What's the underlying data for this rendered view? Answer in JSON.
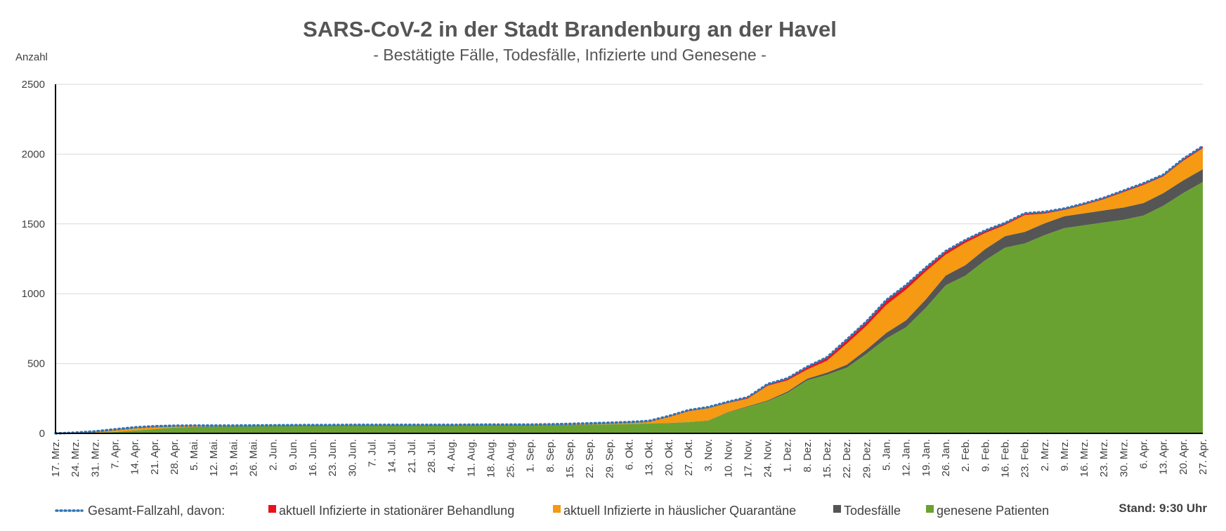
{
  "chart_data": {
    "type": "area",
    "title": "SARS-CoV-2 in der Stadt Brandenburg an der Havel",
    "subtitle": "- Bestätigte Fälle, Todesfälle, Infizierte und Genesene -",
    "ylabel": "Anzahl",
    "ylim": [
      0,
      2500
    ],
    "yticks": [
      0,
      500,
      1000,
      1500,
      2000,
      2500
    ],
    "grid": true,
    "legend_position": "bottom",
    "stand": "Stand: 9:30 Uhr",
    "categories": [
      "17. Mrz.",
      "24. Mrz.",
      "31. Mrz.",
      "7. Apr.",
      "14. Apr.",
      "21. Apr.",
      "28. Apr.",
      "5. Mai.",
      "12. Mai.",
      "19. Mai.",
      "26. Mai.",
      "2. Jun.",
      "9. Jun.",
      "16. Jun.",
      "23. Jun.",
      "30. Jun.",
      "7. Jul.",
      "14. Jul.",
      "21. Jul.",
      "28. Jul.",
      "4. Aug.",
      "11. Aug.",
      "18. Aug.",
      "25. Aug.",
      "1. Sep.",
      "8. Sep.",
      "15. Sep.",
      "22. Sep.",
      "29. Sep.",
      "6. Okt.",
      "13. Okt.",
      "20. Okt.",
      "27. Okt.",
      "3. Nov.",
      "10. Nov.",
      "17. Nov.",
      "24. Nov.",
      "1. Dez.",
      "8. Dez.",
      "15. Dez.",
      "22. Dez.",
      "29. Dez.",
      "5. Jan.",
      "12. Jan.",
      "19. Jan.",
      "26. Jan.",
      "2. Feb.",
      "9. Feb.",
      "16. Feb.",
      "23. Feb.",
      "2. Mrz.",
      "9. Mrz.",
      "16. Mrz.",
      "23. Mrz.",
      "30. Mrz.",
      "6. Apr.",
      "13. Apr.",
      "20. Apr.",
      "27. Apr."
    ],
    "series": [
      {
        "name": "genesene Patienten",
        "color": "#6aa232",
        "values": [
          0,
          2,
          5,
          10,
          20,
          30,
          40,
          45,
          48,
          50,
          52,
          54,
          55,
          56,
          56,
          57,
          57,
          57,
          57,
          57,
          57,
          58,
          58,
          58,
          58,
          59,
          60,
          62,
          64,
          66,
          70,
          74,
          80,
          90,
          150,
          190,
          230,
          290,
          380,
          420,
          470,
          570,
          680,
          760,
          900,
          1060,
          1130,
          1240,
          1330,
          1360,
          1420,
          1470,
          1490,
          1510,
          1530,
          1560,
          1630,
          1720,
          1800
        ]
      },
      {
        "name": "Todesfälle",
        "color": "#555555",
        "values": [
          0,
          0,
          0,
          0,
          1,
          1,
          1,
          1,
          1,
          1,
          1,
          1,
          1,
          1,
          1,
          1,
          1,
          1,
          1,
          1,
          1,
          1,
          1,
          1,
          1,
          1,
          1,
          1,
          1,
          1,
          1,
          1,
          1,
          2,
          3,
          4,
          6,
          9,
          12,
          15,
          22,
          30,
          40,
          50,
          60,
          70,
          75,
          80,
          82,
          83,
          84,
          85,
          86,
          87,
          88,
          89,
          90,
          91,
          92
        ]
      },
      {
        "name": "aktuell Infizierte in häuslicher Quarantäne",
        "color": "#f59a12",
        "values": [
          0,
          3,
          8,
          17,
          19,
          17,
          12,
          8,
          6,
          4,
          3,
          2,
          2,
          2,
          2,
          2,
          2,
          2,
          2,
          2,
          2,
          2,
          3,
          3,
          3,
          4,
          6,
          8,
          10,
          12,
          16,
          45,
          80,
          90,
          65,
          55,
          105,
          80,
          65,
          85,
          150,
          170,
          200,
          220,
          200,
          150,
          160,
          115,
          80,
          120,
          70,
          45,
          60,
          80,
          110,
          130,
          120,
          140,
          150
        ]
      },
      {
        "name": "aktuell Infizierte in stationärer Behandlung",
        "color": "#e8141c",
        "values": [
          0,
          0,
          1,
          2,
          3,
          3,
          2,
          2,
          1,
          1,
          1,
          1,
          1,
          1,
          1,
          1,
          1,
          1,
          1,
          1,
          1,
          1,
          1,
          1,
          1,
          1,
          1,
          1,
          1,
          2,
          2,
          4,
          5,
          6,
          8,
          10,
          12,
          15,
          20,
          25,
          30,
          32,
          35,
          32,
          28,
          25,
          20,
          18,
          15,
          13,
          12,
          10,
          10,
          10,
          11,
          12,
          12,
          14,
          15
        ]
      }
    ],
    "total_series": {
      "name": "Gesamt-Fallzahl, davon:",
      "color": "#2e75b6",
      "values": [
        0,
        5,
        14,
        29,
        43,
        51,
        55,
        56,
        56,
        56,
        57,
        58,
        59,
        60,
        60,
        61,
        61,
        61,
        61,
        61,
        61,
        62,
        63,
        63,
        63,
        65,
        68,
        72,
        76,
        81,
        89,
        124,
        166,
        188,
        226,
        259,
        353,
        394,
        477,
        545,
        672,
        802,
        955,
        1062,
        1188,
        1305,
        1385,
        1453,
        1507,
        1576,
        1586,
        1610,
        1646,
        1687,
        1739,
        1791,
        1852,
        1965,
        2057
      ]
    }
  }
}
